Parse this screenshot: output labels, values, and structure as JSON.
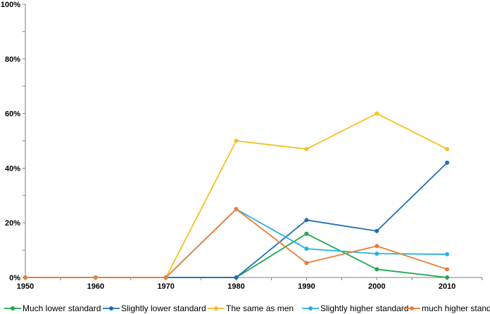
{
  "chart_data": {
    "type": "line",
    "x": [
      1950,
      1960,
      1970,
      1980,
      1990,
      2000,
      2010
    ],
    "x_tick_labels": [
      "1950",
      "1960",
      "1970",
      "1980",
      "1990",
      "2000",
      "2010"
    ],
    "y_tick_labels": [
      "0%",
      "20%",
      "40%",
      "60%",
      "80%",
      "100%"
    ],
    "xlim": [
      1950,
      2015
    ],
    "ylim": [
      0,
      100
    ],
    "y_unit": "percent",
    "grid": false,
    "legend_position": "bottom",
    "title": "",
    "xlabel": "",
    "ylabel": "",
    "series": [
      {
        "name": "Much lower standard",
        "color": "#1fa650",
        "points": [
          [
            1950,
            0
          ],
          [
            1960,
            0
          ],
          [
            1970,
            0
          ],
          [
            1980,
            0
          ],
          [
            1990,
            16
          ],
          [
            2000,
            3
          ],
          [
            2010,
            0
          ]
        ]
      },
      {
        "name": "Slightly lower standard",
        "color": "#1f6fb5",
        "points": [
          [
            1950,
            0
          ],
          [
            1960,
            0
          ],
          [
            1970,
            0
          ],
          [
            1980,
            0
          ],
          [
            1990,
            21
          ],
          [
            2000,
            17
          ],
          [
            2010,
            42
          ]
        ]
      },
      {
        "name": "The same as men",
        "color": "#f5c022",
        "points": [
          [
            1950,
            0
          ],
          [
            1960,
            0
          ],
          [
            1970,
            0
          ],
          [
            1980,
            50
          ],
          [
            1990,
            47
          ],
          [
            2000,
            60
          ],
          [
            2010,
            47
          ]
        ]
      },
      {
        "name": "Slightly higher standard",
        "color": "#26b0e3",
        "points": [
          [
            1950,
            0
          ],
          [
            1960,
            0
          ],
          [
            1970,
            0
          ],
          [
            1980,
            25
          ],
          [
            1990,
            10.5
          ],
          [
            2000,
            8.7
          ],
          [
            2010,
            8.5
          ]
        ]
      },
      {
        "name": "much higher standard",
        "color": "#e67f3a",
        "points": [
          [
            1950,
            0
          ],
          [
            1960,
            0
          ],
          [
            1970,
            0
          ],
          [
            1980,
            25
          ],
          [
            1990,
            5.3
          ],
          [
            2000,
            11.5
          ],
          [
            2010,
            3
          ]
        ]
      }
    ]
  }
}
